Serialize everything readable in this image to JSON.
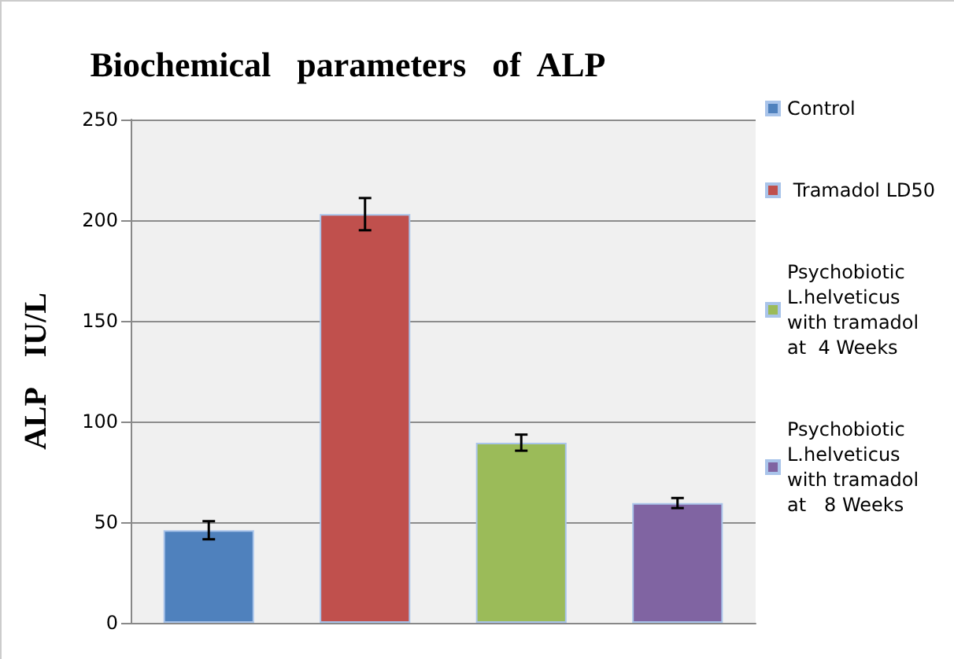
{
  "chart_data": {
    "type": "bar",
    "title": "Biochemical   parameters   of  ALP",
    "ylabel": "ALP    IU/L",
    "categories": [
      null,
      null,
      null,
      null
    ],
    "series": [
      {
        "name": "Control",
        "color": "#4f81bd",
        "values": [
          46,
          null,
          null,
          null
        ],
        "errors": [
          4.5,
          null,
          null,
          null
        ]
      },
      {
        "name": " Tramadol LD50",
        "color": "#c0504d",
        "values": [
          null,
          203,
          null,
          null
        ],
        "errors": [
          null,
          8,
          null,
          null
        ]
      },
      {
        "name": "Psychobiotic L.helveticus with tramadol at  4 Weeks",
        "color": "#9bbb59",
        "values": [
          null,
          null,
          89.5,
          null
        ],
        "errors": [
          null,
          null,
          4,
          null
        ]
      },
      {
        "name": "Psychobiotic L.helveticus with tramadol at   8 Weeks",
        "color": "#8064a2",
        "values": [
          null,
          null,
          null,
          59.5
        ],
        "errors": [
          null,
          null,
          null,
          2.5
        ]
      }
    ],
    "ylim": [
      0,
      250
    ],
    "yticks": [
      0,
      50,
      100,
      150,
      200,
      250
    ],
    "grid": "y",
    "legend": "right"
  }
}
